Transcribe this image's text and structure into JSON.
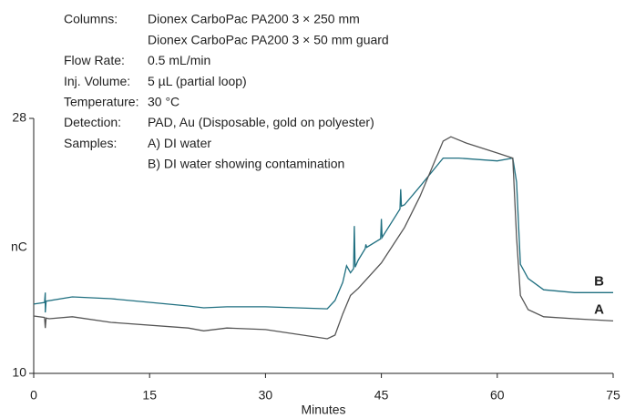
{
  "chart_data": {
    "type": "line",
    "conditions": [
      {
        "label": "Columns:",
        "text": "Dionex CarboPac PA200 3 × 250 mm"
      },
      {
        "text": "Dionex CarboPac PA200 3 × 50 mm guard"
      },
      {
        "label": "Flow Rate:",
        "text": "0.5 mL/min"
      },
      {
        "label": "Inj. Volume:",
        "text": "5 µL (partial loop)"
      },
      {
        "label": "Temperature:",
        "text": "30 °C"
      },
      {
        "label": "Detection:",
        "text": "PAD, Au (Disposable, gold on polyester)"
      },
      {
        "label": "Samples:",
        "text": "A) DI water"
      },
      {
        "text": "B) DI water showing contamination"
      }
    ],
    "xlabel": "Minutes",
    "ylabel": "nC",
    "xlim": [
      0,
      75
    ],
    "xticks": [
      0,
      15,
      30,
      45,
      60,
      75
    ],
    "ylim": [
      10,
      28
    ],
    "yticks": [
      10,
      28
    ],
    "series": [
      {
        "name": "B",
        "color": "#1f6f80",
        "x": [
          0,
          1.4,
          1.5,
          1.5,
          1.6,
          5,
          10,
          20,
          22,
          25,
          30,
          38,
          39,
          40,
          40.5,
          41,
          41.4,
          41.5,
          41.6,
          42,
          42.9,
          43,
          43.1,
          44.9,
          45,
          45.1,
          47.4,
          47.5,
          47.6,
          48,
          50,
          53,
          55,
          60,
          62,
          62.5,
          63,
          64,
          66,
          70,
          75
        ],
        "values": [
          14.89,
          15.0,
          15.7,
          14.3,
          15.1,
          15.4,
          15.27,
          14.76,
          14.63,
          14.7,
          14.7,
          14.56,
          15.14,
          16.43,
          17.6,
          17.1,
          17.4,
          20.4,
          17.5,
          18.0,
          18.8,
          19.1,
          18.9,
          19.5,
          20.9,
          19.6,
          21.6,
          23.0,
          21.8,
          21.9,
          23.2,
          25.2,
          25.2,
          25.0,
          25.2,
          23.5,
          17.7,
          16.7,
          15.9,
          15.7,
          15.7
        ]
      },
      {
        "name": "A",
        "color": "#555555",
        "x": [
          0,
          1.4,
          1.5,
          1.6,
          2,
          5,
          10,
          20,
          22,
          25,
          30,
          38,
          39,
          40,
          41,
          42,
          45,
          48,
          50,
          53,
          54,
          56,
          60,
          62,
          62.5,
          63,
          64,
          66,
          70,
          75
        ],
        "values": [
          14.05,
          13.95,
          13.2,
          13.9,
          13.86,
          14.0,
          13.6,
          13.2,
          13.0,
          13.2,
          13.09,
          12.44,
          12.7,
          14.2,
          15.5,
          16.0,
          17.8,
          20.3,
          22.5,
          26.4,
          26.7,
          26.26,
          25.56,
          25.2,
          19.6,
          15.5,
          14.5,
          14.0,
          13.86,
          13.7
        ]
      }
    ]
  }
}
